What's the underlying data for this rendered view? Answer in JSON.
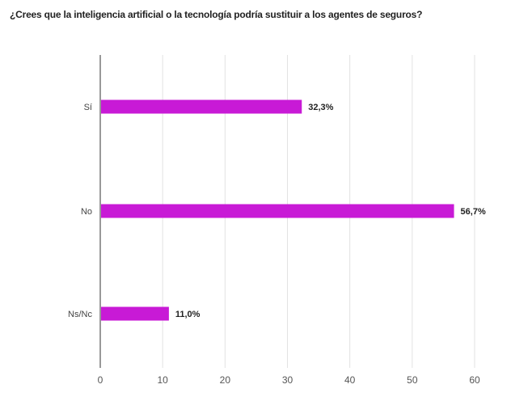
{
  "chart_data": {
    "type": "bar",
    "orientation": "horizontal",
    "title": "¿Crees que la inteligencia artificial o la tecnología podría sustituir a los agentes de seguros?",
    "categories": [
      "Sí",
      "No",
      "Ns/Nc"
    ],
    "values": [
      32.3,
      56.7,
      11.0
    ],
    "data_labels": [
      "32,3%",
      "56,7%",
      "11,0%"
    ],
    "xlabel": "",
    "ylabel": "",
    "xlim": [
      0,
      60
    ],
    "xticks": [
      0,
      10,
      20,
      30,
      40,
      50,
      60
    ],
    "grid": true,
    "bar_color": "#c81ad6"
  }
}
